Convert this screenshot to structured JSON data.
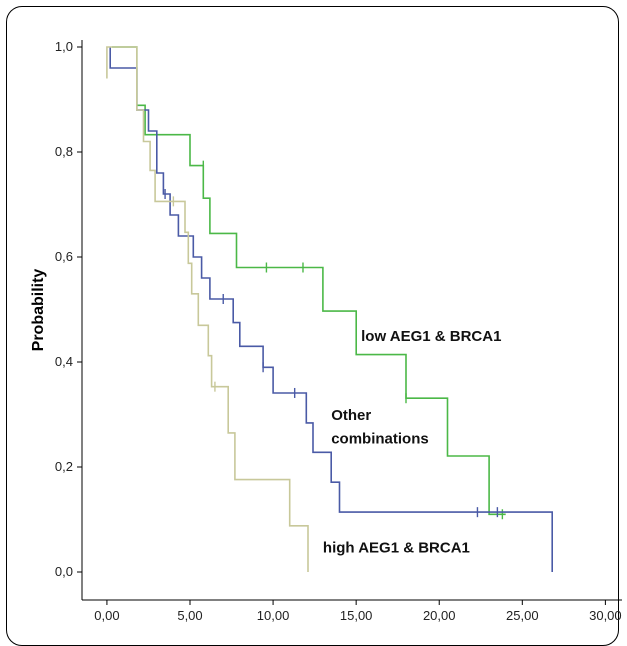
{
  "chart_data": {
    "type": "line",
    "title": "",
    "xlabel": "",
    "ylabel": "Probability",
    "xlim": [
      -1.5,
      31
    ],
    "ylim": [
      0,
      1.0
    ],
    "x_ticks": [
      0,
      5,
      10,
      15,
      20,
      25,
      30
    ],
    "x_tick_labels": [
      "0,00",
      "5,00",
      "10,00",
      "15,00",
      "20,00",
      "25,00",
      "30,00"
    ],
    "y_ticks": [
      0,
      0.2,
      0.4,
      0.6,
      0.8,
      1.0
    ],
    "y_tick_labels": [
      "0,0",
      "0,2",
      "0,4",
      "0,6",
      "0,8",
      "1,0"
    ],
    "grid": false,
    "legend": "none",
    "annotations": [
      {
        "text": "low AEG1 & BRCA1",
        "x": 15.3,
        "y": 0.44
      },
      {
        "text": "Other",
        "x": 13.5,
        "y": 0.29
      },
      {
        "text": "combinations",
        "x": 13.5,
        "y": 0.245
      },
      {
        "text": "high  AEG1 & BRCA1",
        "x": 13.0,
        "y": 0.037
      }
    ],
    "series": [
      {
        "label": "low AEG1 & BRCA1",
        "color": "#4bb847",
        "steps": [
          [
            0.3,
            1.0
          ],
          [
            1.8,
            1.0
          ],
          [
            1.8,
            0.889
          ],
          [
            2.3,
            0.889
          ],
          [
            2.3,
            0.833
          ],
          [
            3.0,
            0.833
          ],
          [
            3.0,
            0.833
          ],
          [
            5.0,
            0.833
          ],
          [
            5.0,
            0.774
          ],
          [
            5.8,
            0.774
          ],
          [
            5.8,
            0.712
          ],
          [
            6.2,
            0.712
          ],
          [
            6.2,
            0.645
          ],
          [
            7.8,
            0.645
          ],
          [
            7.8,
            0.58
          ],
          [
            13.0,
            0.58
          ],
          [
            13.0,
            0.497
          ],
          [
            15.0,
            0.497
          ],
          [
            15.0,
            0.414
          ],
          [
            18.0,
            0.414
          ],
          [
            18.0,
            0.331
          ],
          [
            20.5,
            0.331
          ],
          [
            20.5,
            0.221
          ],
          [
            23.0,
            0.221
          ],
          [
            23.0,
            0.11
          ],
          [
            24.0,
            0.11
          ]
        ],
        "censored": [
          [
            5.8,
            0.774
          ],
          [
            9.6,
            0.58
          ],
          [
            11.8,
            0.58
          ],
          [
            18.0,
            0.331
          ],
          [
            23.8,
            0.11
          ]
        ]
      },
      {
        "label": "Other combinations",
        "color": "#4a5aa6",
        "steps": [
          [
            0.2,
            1.0
          ],
          [
            0.2,
            0.96
          ],
          [
            1.8,
            0.96
          ],
          [
            1.8,
            0.88
          ],
          [
            2.5,
            0.88
          ],
          [
            2.5,
            0.84
          ],
          [
            3.0,
            0.84
          ],
          [
            3.0,
            0.76
          ],
          [
            3.4,
            0.76
          ],
          [
            3.4,
            0.72
          ],
          [
            3.8,
            0.72
          ],
          [
            3.8,
            0.68
          ],
          [
            4.3,
            0.68
          ],
          [
            4.3,
            0.64
          ],
          [
            5.2,
            0.64
          ],
          [
            5.2,
            0.6
          ],
          [
            5.7,
            0.6
          ],
          [
            5.7,
            0.56
          ],
          [
            6.2,
            0.56
          ],
          [
            6.2,
            0.52
          ],
          [
            7.6,
            0.52
          ],
          [
            7.6,
            0.475
          ],
          [
            8.0,
            0.475
          ],
          [
            8.0,
            0.43
          ],
          [
            9.4,
            0.43
          ],
          [
            9.4,
            0.39
          ],
          [
            10.0,
            0.39
          ],
          [
            10.0,
            0.341
          ],
          [
            12.0,
            0.341
          ],
          [
            12.0,
            0.284
          ],
          [
            12.4,
            0.284
          ],
          [
            12.4,
            0.228
          ],
          [
            13.5,
            0.228
          ],
          [
            13.5,
            0.171
          ],
          [
            14.0,
            0.171
          ],
          [
            14.0,
            0.114
          ],
          [
            26.8,
            0.114
          ],
          [
            26.8,
            0.0
          ]
        ],
        "censored": [
          [
            3.5,
            0.72
          ],
          [
            7.0,
            0.52
          ],
          [
            9.4,
            0.39
          ],
          [
            11.3,
            0.341
          ],
          [
            22.3,
            0.114
          ],
          [
            23.5,
            0.114
          ]
        ]
      },
      {
        "label": "high AEG1 & BRCA1",
        "color": "#c8c89a",
        "steps": [
          [
            0.0,
            0.94
          ],
          [
            0.0,
            1.0
          ],
          [
            1.8,
            1.0
          ],
          [
            1.8,
            0.88
          ],
          [
            2.2,
            0.88
          ],
          [
            2.2,
            0.82
          ],
          [
            2.6,
            0.82
          ],
          [
            2.6,
            0.765
          ],
          [
            2.9,
            0.765
          ],
          [
            2.9,
            0.706
          ],
          [
            4.7,
            0.706
          ],
          [
            4.7,
            0.647
          ],
          [
            4.9,
            0.647
          ],
          [
            4.9,
            0.588
          ],
          [
            5.1,
            0.588
          ],
          [
            5.1,
            0.53
          ],
          [
            5.5,
            0.53
          ],
          [
            5.5,
            0.47
          ],
          [
            6.1,
            0.47
          ],
          [
            6.1,
            0.412
          ],
          [
            6.3,
            0.412
          ],
          [
            6.3,
            0.353
          ],
          [
            7.3,
            0.353
          ],
          [
            7.3,
            0.265
          ],
          [
            7.7,
            0.265
          ],
          [
            7.7,
            0.176
          ],
          [
            11.0,
            0.176
          ],
          [
            11.0,
            0.088
          ],
          [
            12.1,
            0.088
          ],
          [
            12.1,
            0.0
          ]
        ],
        "censored": [
          [
            4.0,
            0.706
          ],
          [
            6.5,
            0.353
          ]
        ]
      }
    ]
  }
}
